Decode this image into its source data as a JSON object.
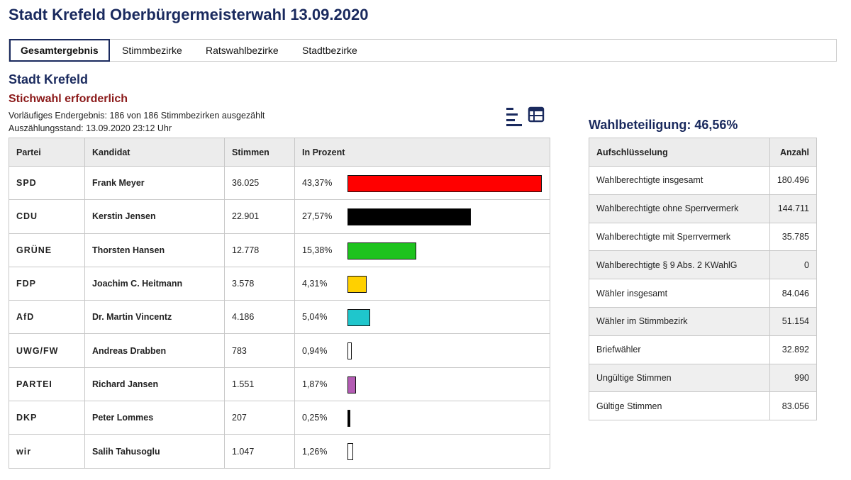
{
  "title": "Stadt Krefeld Oberbürgermeisterwahl 13.09.2020",
  "tabs": [
    {
      "label": "Gesamtergebnis",
      "active": true
    },
    {
      "label": "Stimmbezirke",
      "active": false
    },
    {
      "label": "Ratswahlbezirke",
      "active": false
    },
    {
      "label": "Stadtbezirke",
      "active": false
    }
  ],
  "region": "Stadt Krefeld",
  "status": "Stichwahl erforderlich",
  "info_line1": "Vorläufiges Endergebnis: 186 von 186 Stimmbezirken ausgezählt",
  "info_line2": "Auszählungsstand: 13.09.2020 23:12 Uhr",
  "view_icons": [
    "bar-chart-icon",
    "table-icon"
  ],
  "results": {
    "headers": [
      "Partei",
      "Kandidat",
      "Stimmen",
      "In Prozent"
    ],
    "rows": [
      {
        "party": "SPD",
        "candidate": "Frank Meyer",
        "votes": "36.025",
        "percent": "43,37%",
        "pct": 43.37,
        "color": "#ff0000"
      },
      {
        "party": "CDU",
        "candidate": "Kerstin Jensen",
        "votes": "22.901",
        "percent": "27,57%",
        "pct": 27.57,
        "color": "#000000"
      },
      {
        "party": "GRÜNE",
        "candidate": "Thorsten Hansen",
        "votes": "12.778",
        "percent": "15,38%",
        "pct": 15.38,
        "color": "#1ec31e"
      },
      {
        "party": "FDP",
        "candidate": "Joachim C. Heitmann",
        "votes": "3.578",
        "percent": "4,31%",
        "pct": 4.31,
        "color": "#ffd000"
      },
      {
        "party": "AfD",
        "candidate": "Dr. Martin Vincentz",
        "votes": "4.186",
        "percent": "5,04%",
        "pct": 5.04,
        "color": "#1fc6cc"
      },
      {
        "party": "UWG/FW",
        "candidate": "Andreas Drabben",
        "votes": "783",
        "percent": "0,94%",
        "pct": 0.94,
        "color": "#ffffff"
      },
      {
        "party": "PARTEI",
        "candidate": "Richard Jansen",
        "votes": "1.551",
        "percent": "1,87%",
        "pct": 1.87,
        "color": "#b45cb4"
      },
      {
        "party": "DKP",
        "candidate": "Peter Lommes",
        "votes": "207",
        "percent": "0,25%",
        "pct": 0.25,
        "color": "#000000"
      },
      {
        "party": "wir",
        "candidate": "Salih Tahusoglu",
        "votes": "1.047",
        "percent": "1,26%",
        "pct": 1.26,
        "color": "#ffffff"
      }
    ]
  },
  "turnout": "Wahlbeteiligung: 46,56%",
  "breakdown": {
    "headers": [
      "Aufschlüsselung",
      "Anzahl"
    ],
    "rows": [
      {
        "label": "Wahlberechtigte insgesamt",
        "value": "180.496"
      },
      {
        "label": "Wahlberechtigte ohne Sperrvermerk",
        "value": "144.711"
      },
      {
        "label": "Wahlberechtigte mit Sperrvermerk",
        "value": "35.785"
      },
      {
        "label": "Wahlberechtigte § 9 Abs. 2 KWahlG",
        "value": "0"
      },
      {
        "label": "Wähler insgesamt",
        "value": "84.046"
      },
      {
        "label": "Wähler im Stimmbezirk",
        "value": "51.154"
      },
      {
        "label": "Briefwähler",
        "value": "32.892"
      },
      {
        "label": "Ungültige Stimmen",
        "value": "990"
      },
      {
        "label": "Gültige Stimmen",
        "value": "83.056"
      }
    ]
  }
}
